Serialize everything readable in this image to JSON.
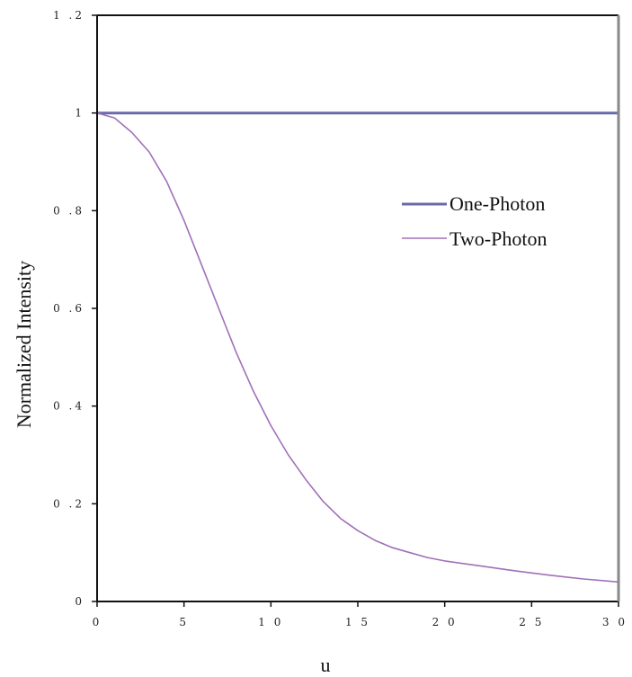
{
  "chart_data": {
    "type": "line",
    "title": "",
    "xlabel": "u",
    "ylabel": "Normalized Intensity",
    "xlim": [
      0,
      30
    ],
    "ylim": [
      0,
      1.2
    ],
    "x_ticks": [
      0,
      5,
      10,
      15,
      20,
      25,
      30
    ],
    "y_ticks": [
      0,
      0.2,
      0.4,
      0.6,
      0.8,
      1,
      1.2
    ],
    "x_tick_labels": [
      "0",
      "5",
      "1 0",
      "1 5",
      "2 0",
      "2 5",
      "3 0"
    ],
    "y_tick_labels": [
      "0",
      "0 .2",
      "0 .4",
      "0 .6",
      "0 .8",
      "1",
      "1 .2"
    ],
    "grid": false,
    "legend_position": "right-middle",
    "series": [
      {
        "name": "One-Photon",
        "color": "#6a6aa8",
        "x": [
          0,
          30
        ],
        "y": [
          1,
          1
        ]
      },
      {
        "name": "Two-Photon",
        "color": "#a070b8",
        "x": [
          0,
          1,
          2,
          3,
          4,
          5,
          6,
          7,
          8,
          9,
          10,
          11,
          12,
          13,
          14,
          15,
          16,
          17,
          18,
          19,
          20,
          22,
          24,
          26,
          28,
          30
        ],
        "y": [
          1.0,
          0.99,
          0.96,
          0.92,
          0.86,
          0.78,
          0.69,
          0.6,
          0.51,
          0.43,
          0.36,
          0.3,
          0.25,
          0.205,
          0.17,
          0.145,
          0.125,
          0.11,
          0.1,
          0.09,
          0.083,
          0.073,
          0.063,
          0.054,
          0.046,
          0.04
        ]
      }
    ]
  }
}
